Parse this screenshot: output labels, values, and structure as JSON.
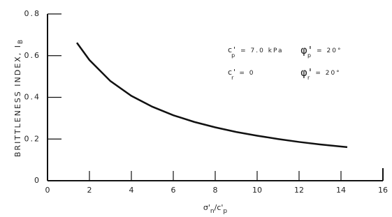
{
  "chart_data": {
    "type": "line",
    "x_label": {
      "symbol": "σ'",
      "sub": "n",
      "slash": "/",
      "symbol2": "c'",
      "sub2": "p"
    },
    "y_label": {
      "text": "BRITTLENESS INDEX, I",
      "sub": "B"
    },
    "annotations": [
      {
        "symbol": "c'",
        "sub": "p",
        "text": "= 7.0 kPa"
      },
      {
        "symbol": "φ'",
        "sub": "p",
        "text": "= 20°"
      },
      {
        "symbol": "c'",
        "sub": "r",
        "text": "= 0"
      },
      {
        "symbol": "φ'",
        "sub": "r",
        "text": "= 20°"
      }
    ],
    "x": [
      1.4,
      2,
      3,
      4,
      5,
      6,
      7,
      8,
      9,
      10,
      11,
      12,
      13,
      14,
      14.3
    ],
    "series": [
      {
        "name": "I_B",
        "color": "#111111",
        "values": [
          0.662,
          0.579,
          0.478,
          0.407,
          0.355,
          0.314,
          0.282,
          0.256,
          0.234,
          0.216,
          0.2,
          0.186,
          0.174,
          0.164,
          0.161
        ]
      }
    ],
    "xlim": [
      0,
      16
    ],
    "ylim": [
      0,
      0.8
    ],
    "xticks": [
      0,
      2,
      4,
      6,
      8,
      10,
      12,
      14,
      16
    ],
    "yticks": [
      0,
      0.2,
      0.4,
      0.6,
      0.8
    ]
  }
}
